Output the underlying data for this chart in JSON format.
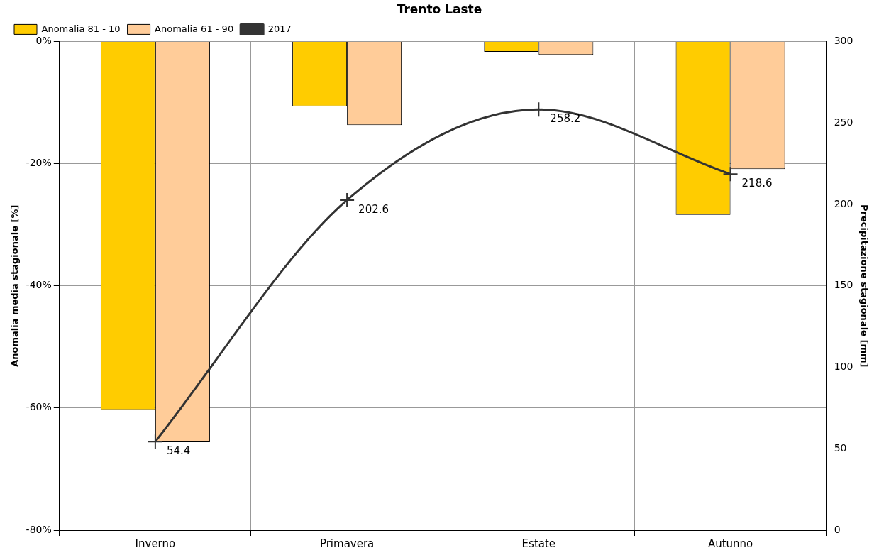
{
  "chart_data": {
    "type": "bar",
    "title": "Trento Laste",
    "ylabel": "Anomalia media stagionale [%]",
    "y2label": "Precipitazione stagionale [mm]",
    "categories": [
      "Inverno",
      "Primavera",
      "Estate",
      "Autunno"
    ],
    "series": [
      {
        "name": "Anomalia 81 - 10",
        "color": "#ffcc00",
        "values": [
          -60.3,
          -10.6,
          -1.7,
          -28.4
        ]
      },
      {
        "name": "Anomalia 61 - 90",
        "color": "#ffcc99",
        "values": [
          -65.6,
          -13.7,
          -2.2,
          -20.9
        ]
      },
      {
        "name": "2017",
        "type": "line",
        "axis": "y2",
        "color": "#333333",
        "marker": "cross",
        "values": [
          54.4,
          202.6,
          258.2,
          218.6
        ],
        "value_labels": [
          "54.4",
          "202.6",
          "258.2",
          "218.6"
        ]
      }
    ],
    "ylim": [
      -80,
      0
    ],
    "yticks": [
      {
        "value": -80,
        "label": "-80%"
      },
      {
        "value": -60,
        "label": "-60%"
      },
      {
        "value": -40,
        "label": "-40%"
      },
      {
        "value": -20,
        "label": "-20%"
      },
      {
        "value": 0,
        "label": "0%"
      }
    ],
    "y2lim": [
      0,
      300
    ],
    "y2ticks": [
      0,
      50,
      100,
      150,
      200,
      250,
      300
    ],
    "grid": true,
    "legend": "top left"
  }
}
